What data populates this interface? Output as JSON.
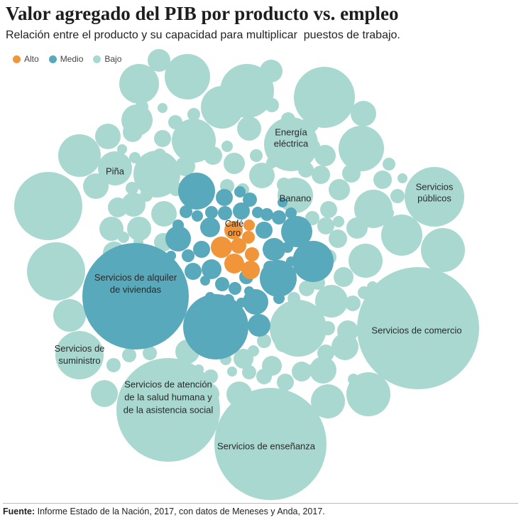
{
  "title": "Valor agregado del PIB por producto vs. empleo",
  "subtitle": "Relación entre el producto y su capacidad para multiplicar  puestos de trabajo.",
  "legend": [
    {
      "label": "Alto",
      "color": "#f0953a"
    },
    {
      "label": "Medio",
      "color": "#58a9bb"
    },
    {
      "label": "Bajo",
      "color": "#a9d8d1"
    }
  ],
  "source": {
    "prefix": "Fuente:",
    "text": " Informe Estado de la Nación, 2017, con datos de Meneses y Anda, 2017."
  },
  "chart_data": {
    "type": "bubble",
    "title": "Valor agregado del PIB por producto vs. empleo",
    "legend_position": "top-left",
    "categories": [
      "Alto",
      "Medio",
      "Bajo"
    ],
    "labeled_series": [
      {
        "name": "Café oro",
        "category": "Alto"
      },
      {
        "name": "Servicios de alquiler de viviendas",
        "category": "Medio"
      },
      {
        "name": "Energía eléctrica",
        "category": "Bajo"
      },
      {
        "name": "Piña",
        "category": "Bajo"
      },
      {
        "name": "Banano",
        "category": "Bajo"
      },
      {
        "name": "Servicios públicos",
        "category": "Bajo"
      },
      {
        "name": "Servicios de comercio",
        "category": "Bajo"
      },
      {
        "name": "Servicios de suministro",
        "category": "Bajo"
      },
      {
        "name": "Servicios de atención de la salud humana y de la asistencia social",
        "category": "Bajo"
      },
      {
        "name": "Servicios de enseñanza",
        "category": "Bajo"
      }
    ],
    "bubble_labels": [
      {
        "lines": [
          "Café",
          "oro"
        ]
      },
      {
        "lines": [
          "Servicios de alquiler",
          "de viviendas"
        ]
      },
      {
        "lines": [
          "Energía",
          "eléctrica"
        ]
      },
      {
        "lines": [
          "Piña"
        ]
      },
      {
        "lines": [
          "Banano"
        ]
      },
      {
        "lines": [
          "Servicios",
          "públicos"
        ]
      },
      {
        "lines": [
          "Servicios de comercio"
        ]
      },
      {
        "lines": [
          "Servicios de",
          "suministro"
        ]
      },
      {
        "lines": [
          "Servicios de atención",
          "de la salud humana y",
          "de la asistencia  social"
        ]
      },
      {
        "lines": [
          "Servicios de enseñanza"
        ]
      }
    ]
  }
}
